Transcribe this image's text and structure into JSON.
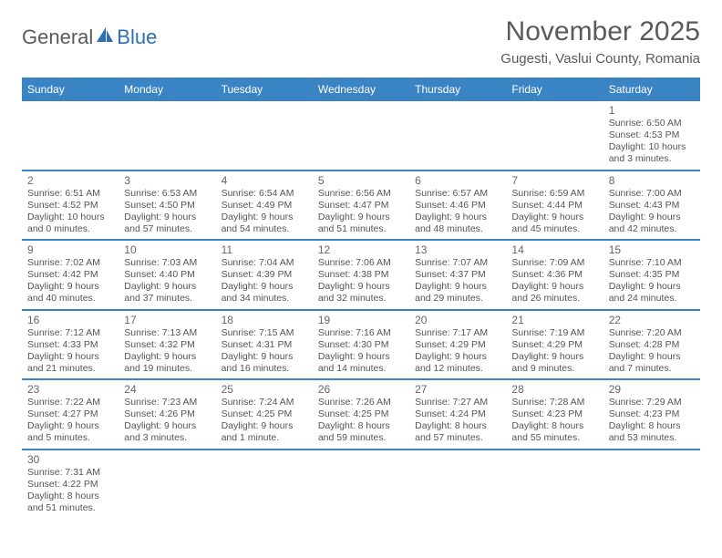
{
  "logo": {
    "text1": "General",
    "text2": "Blue"
  },
  "title": "November 2025",
  "subtitle": "Gugesti, Vaslui County, Romania",
  "colors": {
    "header_bg": "#3b84c4",
    "header_text": "#ffffff",
    "body_text": "#555555",
    "rule": "#3b84c4",
    "light_rule": "#cfcfcf"
  },
  "dayNames": [
    "Sunday",
    "Monday",
    "Tuesday",
    "Wednesday",
    "Thursday",
    "Friday",
    "Saturday"
  ],
  "weeks": [
    [
      null,
      null,
      null,
      null,
      null,
      null,
      {
        "n": "1",
        "sunrise": "6:50 AM",
        "sunset": "4:53 PM",
        "daylight": "10 hours and 3 minutes."
      }
    ],
    [
      {
        "n": "2",
        "sunrise": "6:51 AM",
        "sunset": "4:52 PM",
        "daylight": "10 hours and 0 minutes."
      },
      {
        "n": "3",
        "sunrise": "6:53 AM",
        "sunset": "4:50 PM",
        "daylight": "9 hours and 57 minutes."
      },
      {
        "n": "4",
        "sunrise": "6:54 AM",
        "sunset": "4:49 PM",
        "daylight": "9 hours and 54 minutes."
      },
      {
        "n": "5",
        "sunrise": "6:56 AM",
        "sunset": "4:47 PM",
        "daylight": "9 hours and 51 minutes."
      },
      {
        "n": "6",
        "sunrise": "6:57 AM",
        "sunset": "4:46 PM",
        "daylight": "9 hours and 48 minutes."
      },
      {
        "n": "7",
        "sunrise": "6:59 AM",
        "sunset": "4:44 PM",
        "daylight": "9 hours and 45 minutes."
      },
      {
        "n": "8",
        "sunrise": "7:00 AM",
        "sunset": "4:43 PM",
        "daylight": "9 hours and 42 minutes."
      }
    ],
    [
      {
        "n": "9",
        "sunrise": "7:02 AM",
        "sunset": "4:42 PM",
        "daylight": "9 hours and 40 minutes."
      },
      {
        "n": "10",
        "sunrise": "7:03 AM",
        "sunset": "4:40 PM",
        "daylight": "9 hours and 37 minutes."
      },
      {
        "n": "11",
        "sunrise": "7:04 AM",
        "sunset": "4:39 PM",
        "daylight": "9 hours and 34 minutes."
      },
      {
        "n": "12",
        "sunrise": "7:06 AM",
        "sunset": "4:38 PM",
        "daylight": "9 hours and 32 minutes."
      },
      {
        "n": "13",
        "sunrise": "7:07 AM",
        "sunset": "4:37 PM",
        "daylight": "9 hours and 29 minutes."
      },
      {
        "n": "14",
        "sunrise": "7:09 AM",
        "sunset": "4:36 PM",
        "daylight": "9 hours and 26 minutes."
      },
      {
        "n": "15",
        "sunrise": "7:10 AM",
        "sunset": "4:35 PM",
        "daylight": "9 hours and 24 minutes."
      }
    ],
    [
      {
        "n": "16",
        "sunrise": "7:12 AM",
        "sunset": "4:33 PM",
        "daylight": "9 hours and 21 minutes."
      },
      {
        "n": "17",
        "sunrise": "7:13 AM",
        "sunset": "4:32 PM",
        "daylight": "9 hours and 19 minutes."
      },
      {
        "n": "18",
        "sunrise": "7:15 AM",
        "sunset": "4:31 PM",
        "daylight": "9 hours and 16 minutes."
      },
      {
        "n": "19",
        "sunrise": "7:16 AM",
        "sunset": "4:30 PM",
        "daylight": "9 hours and 14 minutes."
      },
      {
        "n": "20",
        "sunrise": "7:17 AM",
        "sunset": "4:29 PM",
        "daylight": "9 hours and 12 minutes."
      },
      {
        "n": "21",
        "sunrise": "7:19 AM",
        "sunset": "4:29 PM",
        "daylight": "9 hours and 9 minutes."
      },
      {
        "n": "22",
        "sunrise": "7:20 AM",
        "sunset": "4:28 PM",
        "daylight": "9 hours and 7 minutes."
      }
    ],
    [
      {
        "n": "23",
        "sunrise": "7:22 AM",
        "sunset": "4:27 PM",
        "daylight": "9 hours and 5 minutes."
      },
      {
        "n": "24",
        "sunrise": "7:23 AM",
        "sunset": "4:26 PM",
        "daylight": "9 hours and 3 minutes."
      },
      {
        "n": "25",
        "sunrise": "7:24 AM",
        "sunset": "4:25 PM",
        "daylight": "9 hours and 1 minute."
      },
      {
        "n": "26",
        "sunrise": "7:26 AM",
        "sunset": "4:25 PM",
        "daylight": "8 hours and 59 minutes."
      },
      {
        "n": "27",
        "sunrise": "7:27 AM",
        "sunset": "4:24 PM",
        "daylight": "8 hours and 57 minutes."
      },
      {
        "n": "28",
        "sunrise": "7:28 AM",
        "sunset": "4:23 PM",
        "daylight": "8 hours and 55 minutes."
      },
      {
        "n": "29",
        "sunrise": "7:29 AM",
        "sunset": "4:23 PM",
        "daylight": "8 hours and 53 minutes."
      }
    ],
    [
      {
        "n": "30",
        "sunrise": "7:31 AM",
        "sunset": "4:22 PM",
        "daylight": "8 hours and 51 minutes."
      },
      null,
      null,
      null,
      null,
      null,
      null
    ]
  ],
  "labels": {
    "sunrise": "Sunrise: ",
    "sunset": "Sunset: ",
    "daylight": "Daylight: "
  }
}
